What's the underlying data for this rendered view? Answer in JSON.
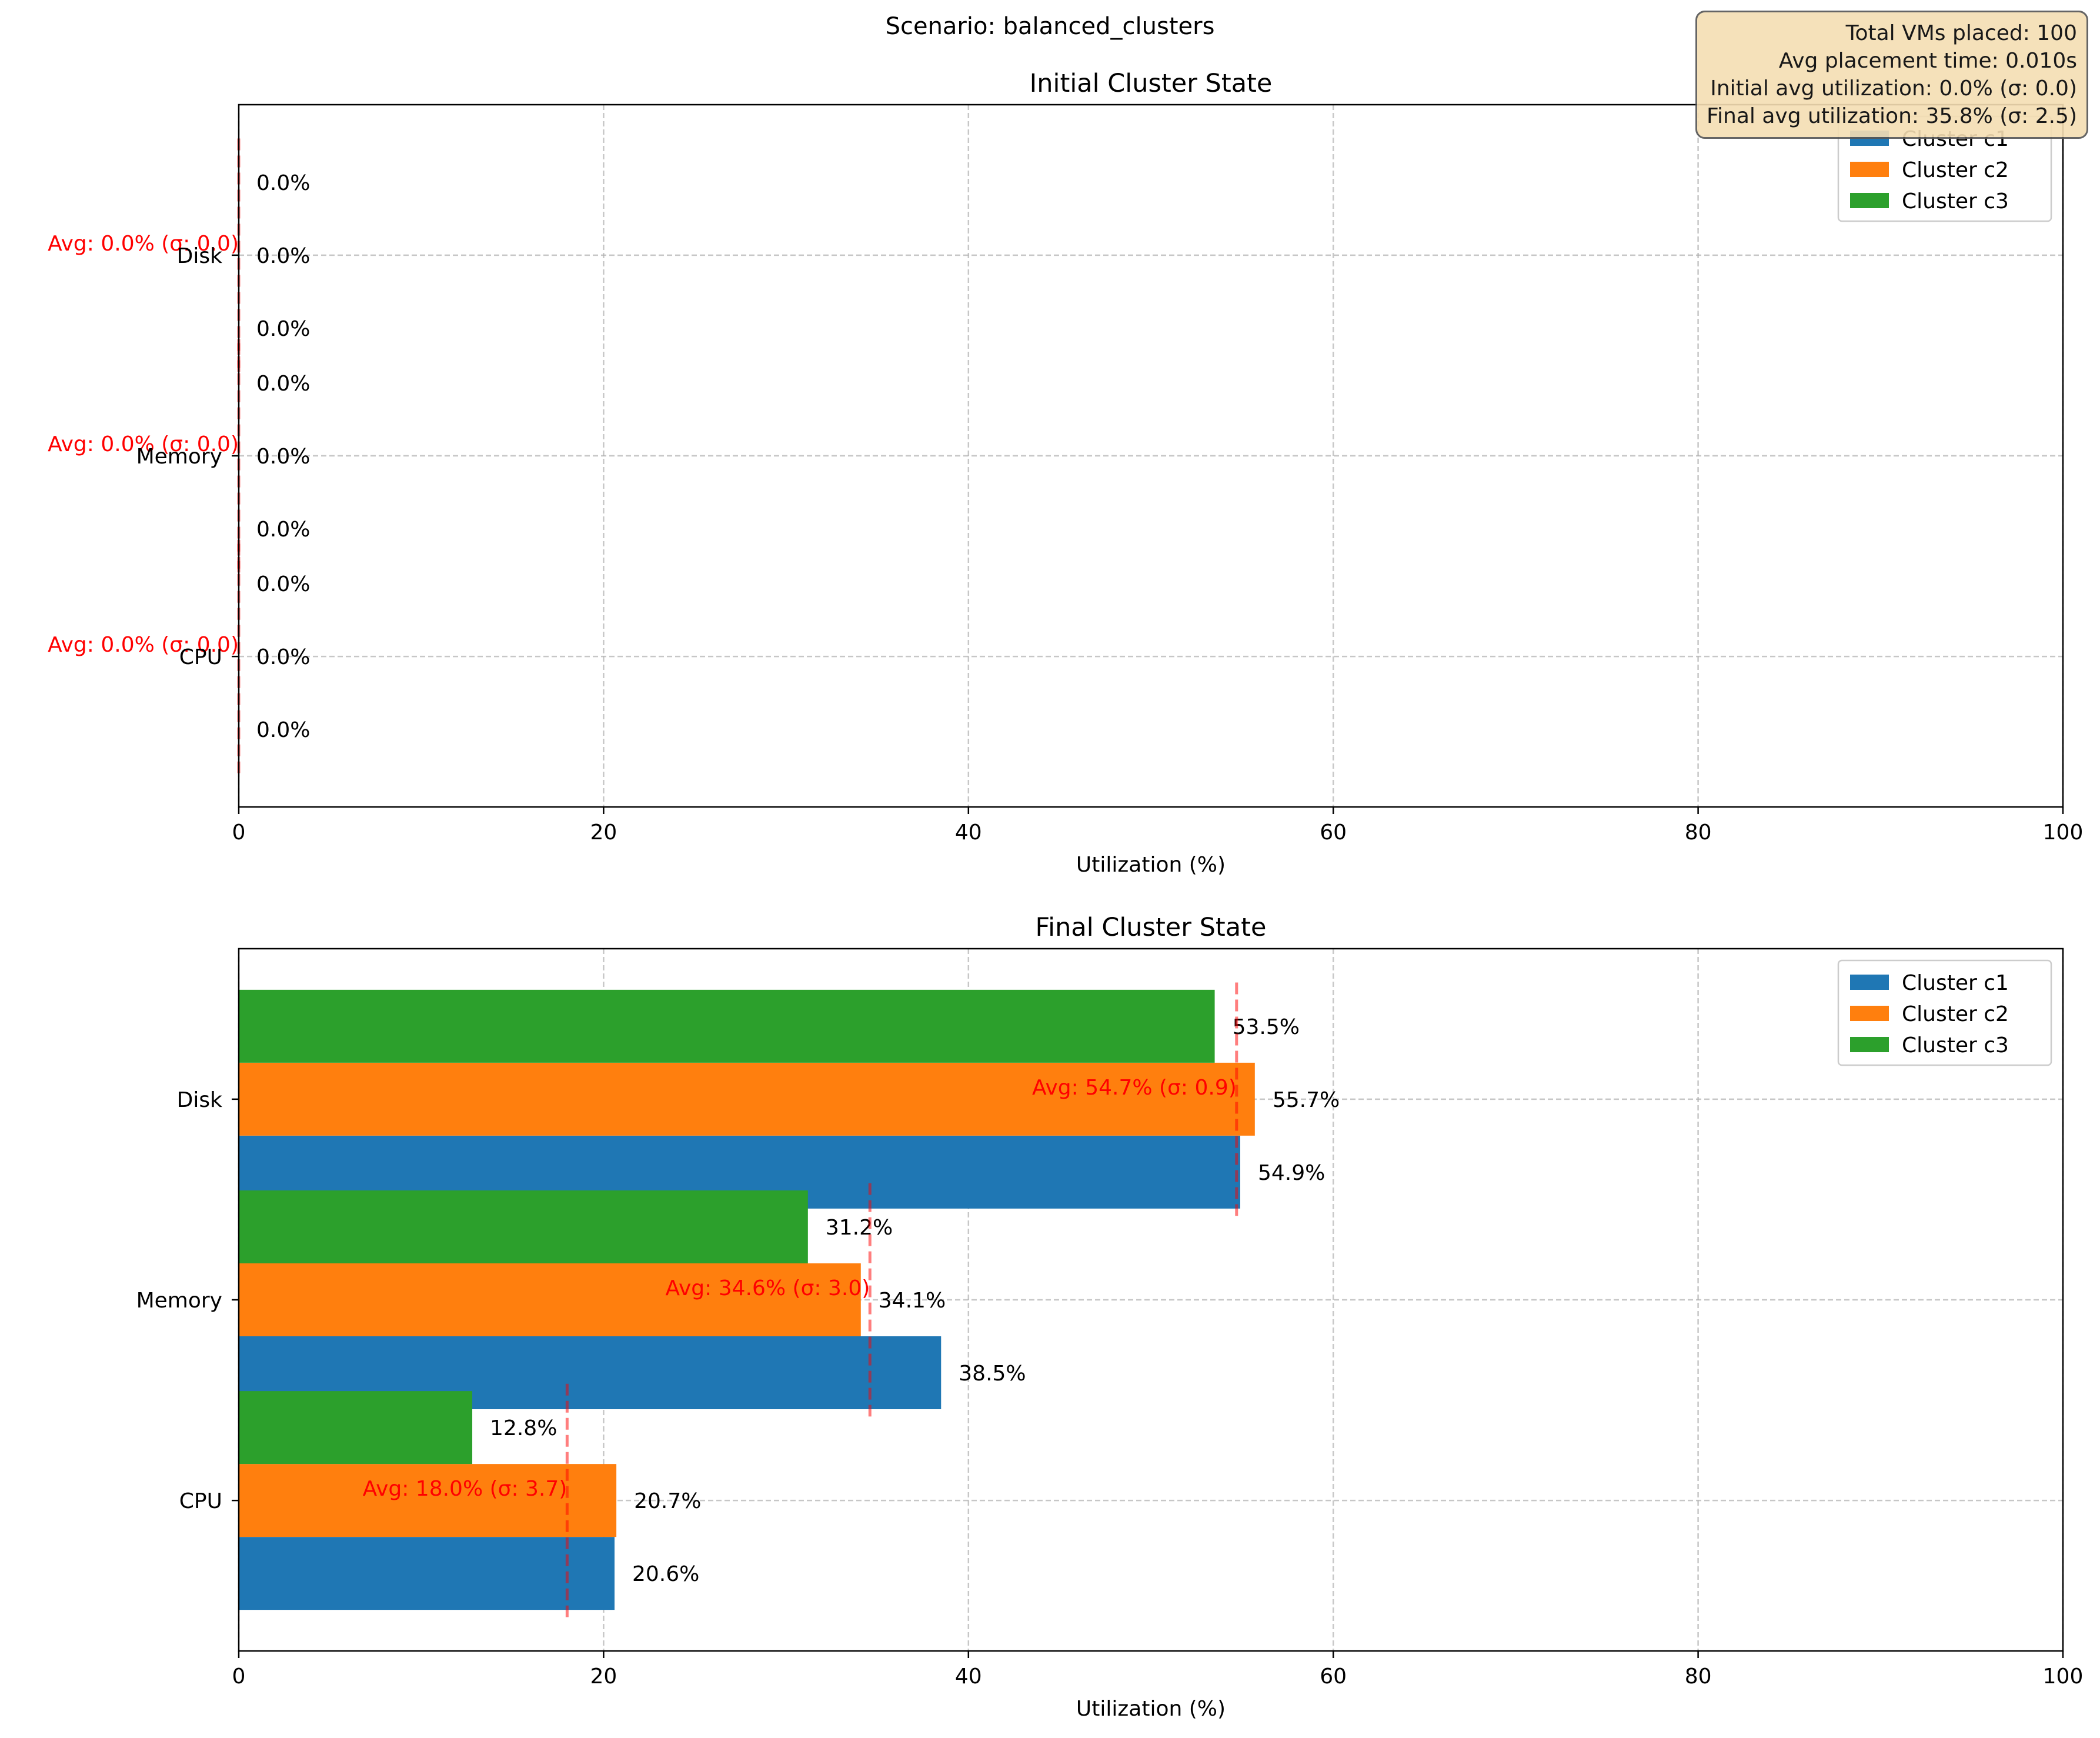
{
  "suptitle": "Scenario: balanced_clusters",
  "stats": {
    "total_vms": "Total VMs placed: 100",
    "avg_time": "Avg placement time: 0.010s",
    "initial_util": "Initial avg utilization: 0.0% (σ: 0.0)",
    "final_util": "Final avg utilization: 35.8% (σ: 2.5)"
  },
  "colors": {
    "c1": "#1f77b4",
    "c2": "#ff7f0e",
    "c3": "#2ca02c",
    "avg": "#ff0000"
  },
  "chart_data": [
    {
      "type": "bar",
      "orientation": "horizontal",
      "title": "Initial Cluster State",
      "xlabel": "Utilization (%)",
      "xlim": [
        0,
        100
      ],
      "xticks": [
        "0",
        "20",
        "40",
        "60",
        "80",
        "100"
      ],
      "categories": [
        "CPU",
        "Memory",
        "Disk"
      ],
      "series": [
        {
          "name": "Cluster c1",
          "values": [
            0.0,
            0.0,
            0.0
          ],
          "labels": [
            "0.0%",
            "0.0%",
            "0.0%"
          ]
        },
        {
          "name": "Cluster c2",
          "values": [
            0.0,
            0.0,
            0.0
          ],
          "labels": [
            "0.0%",
            "0.0%",
            "0.0%"
          ]
        },
        {
          "name": "Cluster c3",
          "values": [
            0.0,
            0.0,
            0.0
          ],
          "labels": [
            "0.0%",
            "0.0%",
            "0.0%"
          ]
        }
      ],
      "averages": [
        {
          "value": 0.0,
          "label": "Avg: 0.0% (σ: 0.0)"
        },
        {
          "value": 0.0,
          "label": "Avg: 0.0% (σ: 0.0)"
        },
        {
          "value": 0.0,
          "label": "Avg: 0.0% (σ: 0.0)"
        }
      ],
      "grid": true,
      "legend": "upper right"
    },
    {
      "type": "bar",
      "orientation": "horizontal",
      "title": "Final Cluster State",
      "xlabel": "Utilization (%)",
      "xlim": [
        0,
        100
      ],
      "xticks": [
        "0",
        "20",
        "40",
        "60",
        "80",
        "100"
      ],
      "categories": [
        "CPU",
        "Memory",
        "Disk"
      ],
      "series": [
        {
          "name": "Cluster c1",
          "values": [
            20.6,
            38.5,
            54.9
          ],
          "labels": [
            "20.6%",
            "38.5%",
            "54.9%"
          ]
        },
        {
          "name": "Cluster c2",
          "values": [
            20.7,
            34.1,
            55.7
          ],
          "labels": [
            "20.7%",
            "34.1%",
            "55.7%"
          ]
        },
        {
          "name": "Cluster c3",
          "values": [
            12.8,
            31.2,
            53.5
          ],
          "labels": [
            "12.8%",
            "31.2%",
            "53.5%"
          ]
        }
      ],
      "averages": [
        {
          "value": 18.0,
          "label": "Avg: 18.0% (σ: 3.7)"
        },
        {
          "value": 34.6,
          "label": "Avg: 34.6% (σ: 3.0)"
        },
        {
          "value": 54.7,
          "label": "Avg: 54.7% (σ: 0.9)"
        }
      ],
      "grid": true,
      "legend": "upper right"
    }
  ]
}
